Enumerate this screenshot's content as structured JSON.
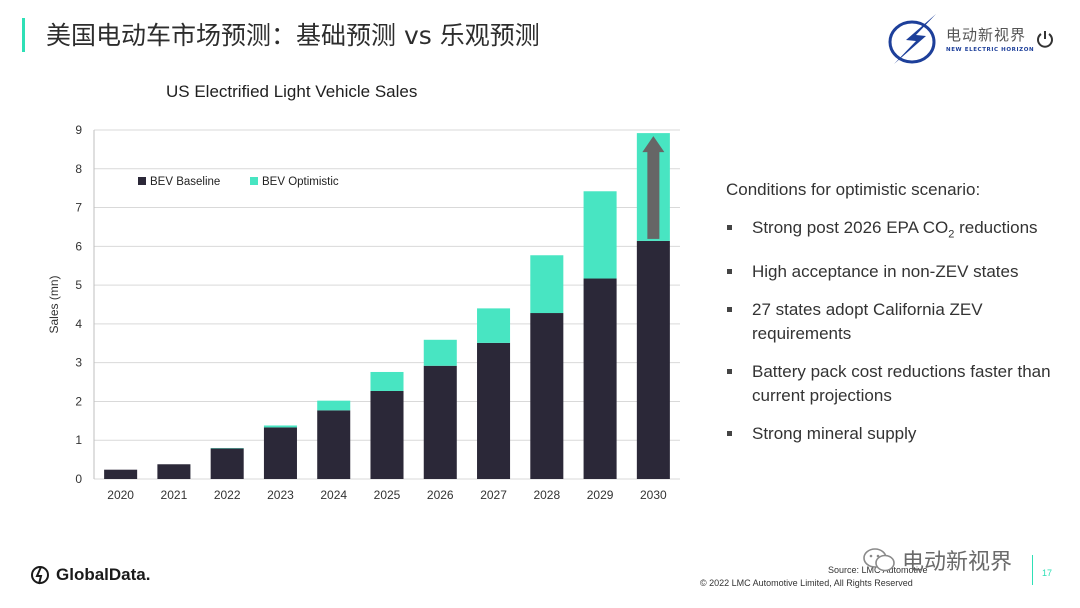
{
  "slide": {
    "title": "美国电动车市场预测：基础预测 vs 乐观预测",
    "page_number": "17"
  },
  "brand": {
    "name_cn": "电动新视界",
    "name_en": "NEW ELECTRIC HORIZON"
  },
  "chart_data": {
    "type": "bar",
    "stacked": true,
    "title": "US Electrified Light Vehicle Sales",
    "xlabel": "",
    "ylabel": "Sales (mn)",
    "ylim": [
      0,
      9
    ],
    "yticks": [
      0,
      1,
      2,
      3,
      4,
      5,
      6,
      7,
      8,
      9
    ],
    "categories": [
      "2020",
      "2021",
      "2022",
      "2023",
      "2024",
      "2025",
      "2026",
      "2027",
      "2028",
      "2029",
      "2030"
    ],
    "series": [
      {
        "name": "BEV Baseline",
        "color": "#2b2838",
        "values": [
          0.24,
          0.38,
          0.79,
          1.33,
          1.77,
          2.27,
          2.92,
          3.51,
          4.28,
          5.17,
          6.14
        ]
      },
      {
        "name": "BEV Optimistic",
        "color": "#48e5c2",
        "values": [
          0.0,
          0.0,
          0.01,
          0.05,
          0.25,
          0.49,
          0.67,
          0.89,
          1.49,
          2.25,
          2.78
        ]
      }
    ],
    "grid": true,
    "legend_position": "top-left",
    "annotation": "upward arrow on 2030 bar",
    "annotation_color": "#666666"
  },
  "conditions": {
    "title": "Conditions for optimistic scenario:",
    "items": [
      "Strong post 2026 EPA CO2 reductions",
      "High acceptance in non-ZEV states",
      "27 states adopt California ZEV requirements",
      "Battery pack cost reductions faster than current projections",
      "Strong mineral supply"
    ]
  },
  "footer": {
    "logo_text": "GlobalData.",
    "source": "Source: LMC Automotive",
    "copyright": "© 2022 LMC Automotive Limited, All Rights Reserved",
    "watermark": "电动新视界"
  },
  "colors": {
    "accent": "#2ee0b6",
    "brand_blue": "#1d3f9a"
  }
}
